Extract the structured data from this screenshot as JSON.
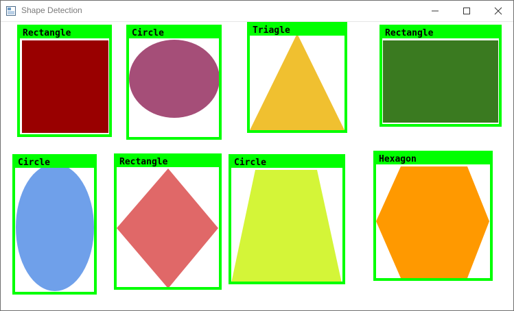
{
  "window": {
    "title": "Shape Detection",
    "icon": "window-app-icon",
    "controls": [
      "minimize-icon",
      "maximize-icon",
      "close-icon"
    ]
  },
  "colors": {
    "box": "#00ff00",
    "red": "#990000",
    "purple": "#a54e78",
    "yellow": "#f0c030",
    "green": "#3a7a20",
    "blue": "#6fa0ea",
    "salmon": "#e06868",
    "lime": "#d4f538",
    "orange": "#ff9900"
  },
  "detections": [
    {
      "label": "Rectangle",
      "shape": "rectangle",
      "color": "#990000"
    },
    {
      "label": "Circle",
      "shape": "circle",
      "color": "#a54e78"
    },
    {
      "label": "Triagle",
      "shape": "triangle",
      "color": "#f0c030"
    },
    {
      "label": "Rectangle",
      "shape": "rectangle",
      "color": "#3a7a20"
    },
    {
      "label": "Circle",
      "shape": "ellipse",
      "color": "#6fa0ea"
    },
    {
      "label": "Rectangle",
      "shape": "diamond",
      "color": "#e06868"
    },
    {
      "label": "Circle",
      "shape": "trapezoid",
      "color": "#d4f538"
    },
    {
      "label": "Hexagon",
      "shape": "hexagon",
      "color": "#ff9900"
    }
  ]
}
